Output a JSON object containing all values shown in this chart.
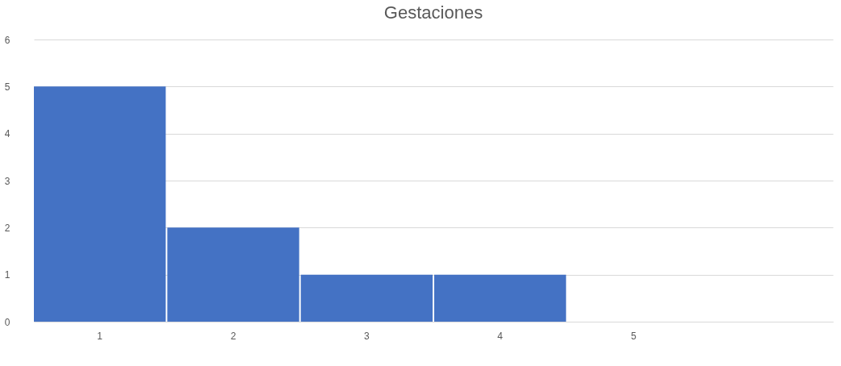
{
  "chart_data": {
    "type": "bar",
    "title": "Gestaciones",
    "categories": [
      "1",
      "2",
      "3",
      "4",
      "5",
      null
    ],
    "values": [
      5,
      2,
      1,
      1,
      0,
      0
    ],
    "color": "#4472c4",
    "ylim": [
      0,
      6
    ],
    "yticks": [
      0,
      1,
      2,
      3,
      4,
      5,
      6
    ],
    "grid": "y"
  }
}
